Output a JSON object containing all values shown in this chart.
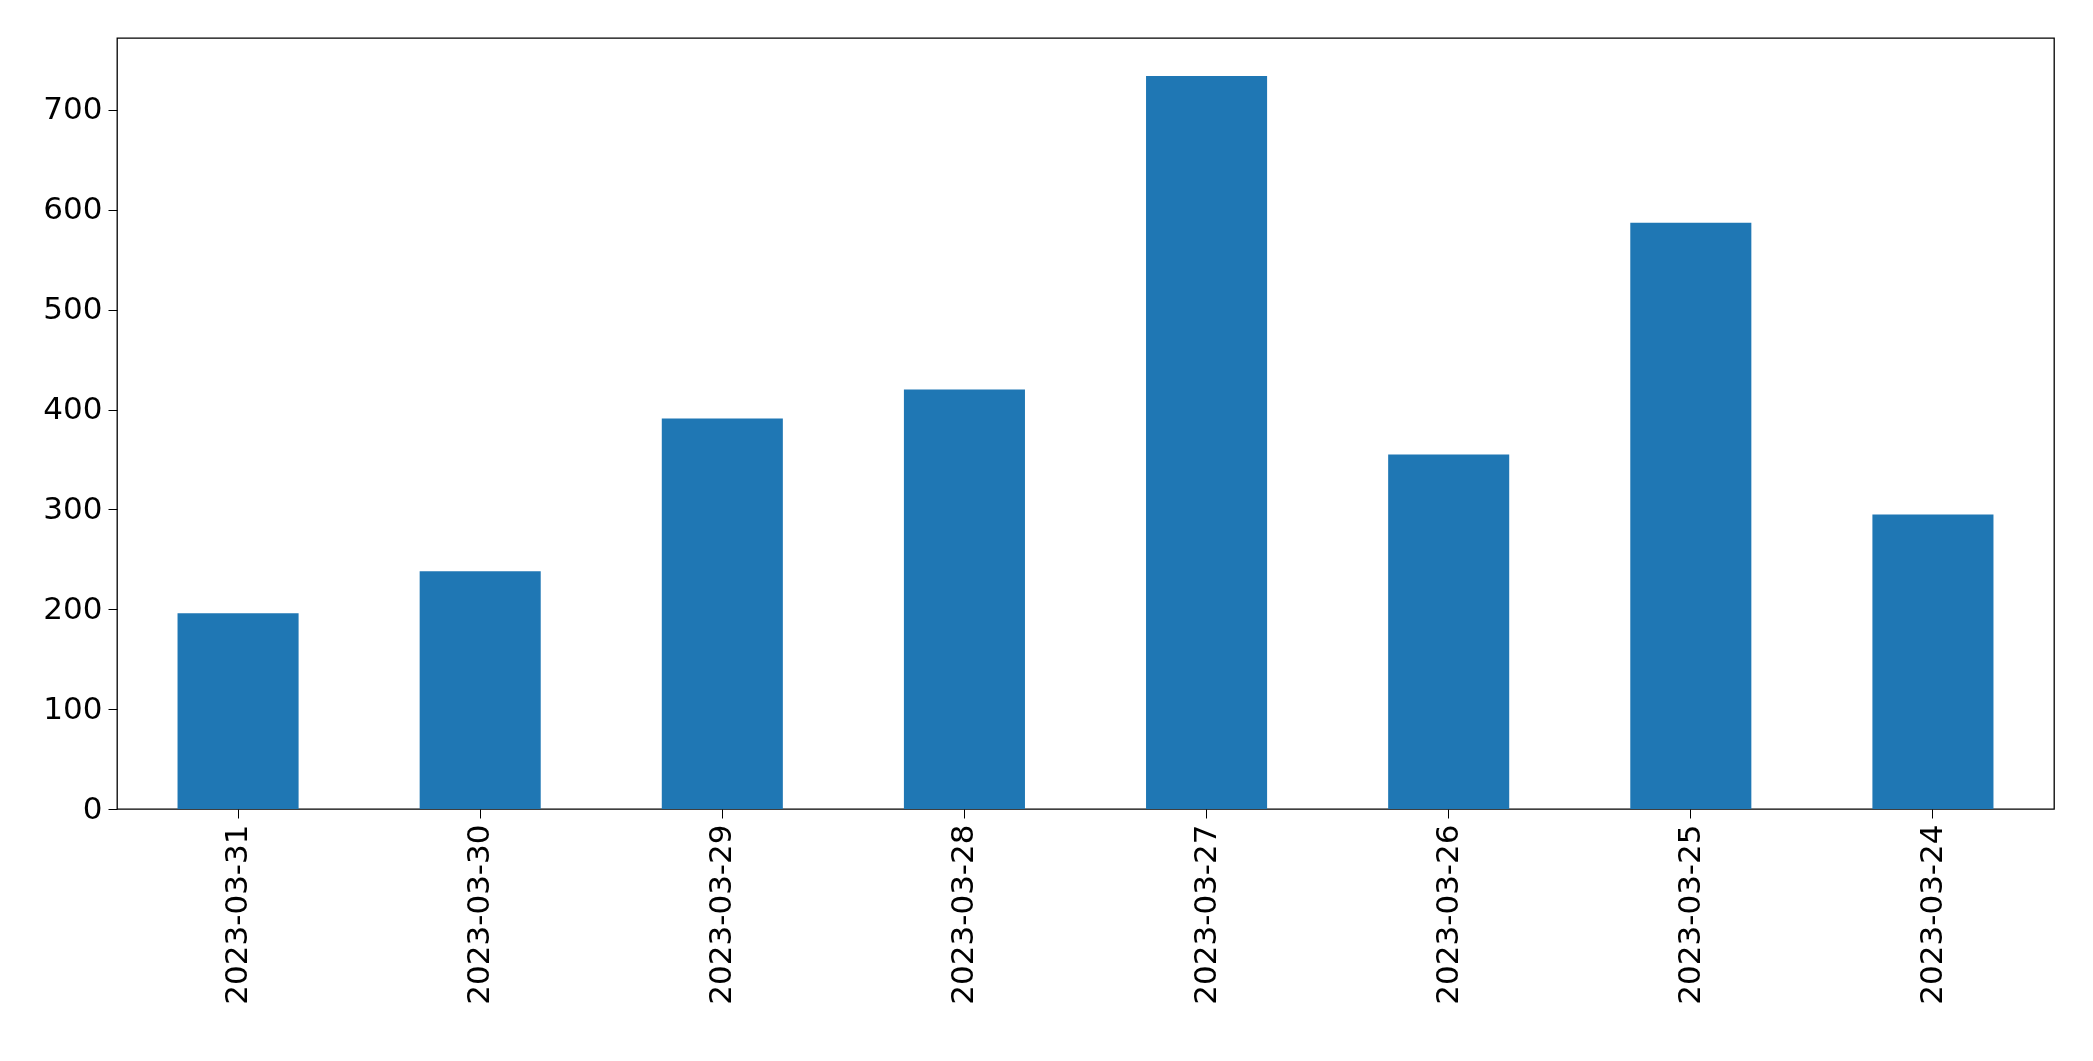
{
  "chart_data": {
    "type": "bar",
    "categories": [
      "2023-03-31",
      "2023-03-30",
      "2023-03-29",
      "2023-03-28",
      "2023-03-27",
      "2023-03-26",
      "2023-03-25",
      "2023-03-24"
    ],
    "values": [
      196,
      238,
      391,
      420,
      734,
      355,
      587,
      295
    ],
    "color": "#1f77b4",
    "ylim": [
      0,
      772
    ],
    "yticks": [
      0,
      100,
      200,
      300,
      400,
      500,
      600,
      700
    ],
    "grid": false
  }
}
